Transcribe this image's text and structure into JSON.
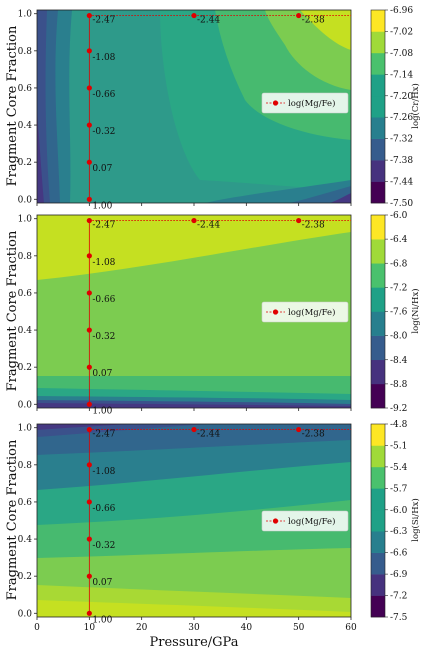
{
  "chart_data": [
    {
      "type": "contour",
      "xlabel": "",
      "ylabel": "Fragment Core Fraction",
      "xlim": [
        0,
        60
      ],
      "ylim": [
        -0.02,
        1.02
      ],
      "xticks": [
        "0",
        "10",
        "20",
        "30",
        "40",
        "50",
        "60"
      ],
      "xticks_shown": false,
      "yticks": [
        "0.0",
        "0.2",
        "0.4",
        "0.6",
        "0.8",
        "1.0"
      ],
      "colorbar": {
        "label": "log(Cr/Hx)",
        "ticks": [
          "-7.50",
          "-7.44",
          "-7.38",
          "-7.32",
          "-7.26",
          "-7.20",
          "-7.14",
          "-7.08",
          "-7.02",
          "-6.96"
        ]
      },
      "legend": {
        "label": "log(Mg/Fe)",
        "position": "center-right"
      },
      "vertical_series": {
        "x": 10,
        "y": [
          0.0,
          0.2,
          0.4,
          0.6,
          0.8,
          0.99
        ],
        "labels": [
          "1.00",
          "0.07",
          "-0.32",
          "-0.66",
          "-1.08",
          "-2.47"
        ]
      },
      "top_series": {
        "x": [
          10,
          30,
          50
        ],
        "y": [
          0.99,
          0.99,
          0.99
        ],
        "labels": [
          "-2.47",
          "-2.44",
          "-2.38"
        ]
      }
    },
    {
      "type": "contour",
      "xlabel": "",
      "ylabel": "Fragment Core Fraction",
      "xlim": [
        0,
        60
      ],
      "ylim": [
        -0.02,
        1.02
      ],
      "xticks": [
        "0",
        "10",
        "20",
        "30",
        "40",
        "50",
        "60"
      ],
      "xticks_shown": false,
      "yticks": [
        "0.0",
        "0.2",
        "0.4",
        "0.6",
        "0.8",
        "1.0"
      ],
      "colorbar": {
        "label": "log(Ni/Hx)",
        "ticks": [
          "-9.2",
          "-8.8",
          "-8.4",
          "-8.0",
          "-7.6",
          "-7.2",
          "-6.8",
          "-6.4",
          "-6.0"
        ]
      },
      "legend": {
        "label": "log(Mg/Fe)",
        "position": "center-right"
      },
      "vertical_series": {
        "x": 10,
        "y": [
          0.0,
          0.2,
          0.4,
          0.6,
          0.8,
          0.99
        ],
        "labels": [
          "1.00",
          "0.07",
          "-0.32",
          "-0.66",
          "-1.08",
          "-2.47"
        ]
      },
      "top_series": {
        "x": [
          10,
          30,
          50
        ],
        "y": [
          0.99,
          0.99,
          0.99
        ],
        "labels": [
          "-2.47",
          "-2.44",
          "-2.38"
        ]
      }
    },
    {
      "type": "contour",
      "xlabel": "Pressure/GPa",
      "ylabel": "Fragment Core Fraction",
      "xlim": [
        0,
        60
      ],
      "ylim": [
        -0.02,
        1.02
      ],
      "xticks": [
        "0",
        "10",
        "20",
        "30",
        "40",
        "50",
        "60"
      ],
      "xticks_shown": true,
      "yticks": [
        "0.0",
        "0.2",
        "0.4",
        "0.6",
        "0.8",
        "1.0"
      ],
      "colorbar": {
        "label": "log(Si/Hx)",
        "ticks": [
          "-7.5",
          "-7.2",
          "-6.9",
          "-6.6",
          "-6.3",
          "-6.0",
          "-5.7",
          "-5.4",
          "-5.1",
          "-4.8"
        ]
      },
      "legend": {
        "label": "log(Mg/Fe)",
        "position": "center-right"
      },
      "vertical_series": {
        "x": 10,
        "y": [
          0.0,
          0.2,
          0.4,
          0.6,
          0.8,
          0.99
        ],
        "labels": [
          "1.00",
          "0.07",
          "-0.32",
          "-0.66",
          "-1.08",
          "-2.47"
        ]
      },
      "top_series": {
        "x": [
          10,
          30,
          50
        ],
        "y": [
          0.99,
          0.99,
          0.99
        ],
        "labels": [
          "-2.47",
          "-2.44",
          "-2.38"
        ]
      }
    }
  ]
}
